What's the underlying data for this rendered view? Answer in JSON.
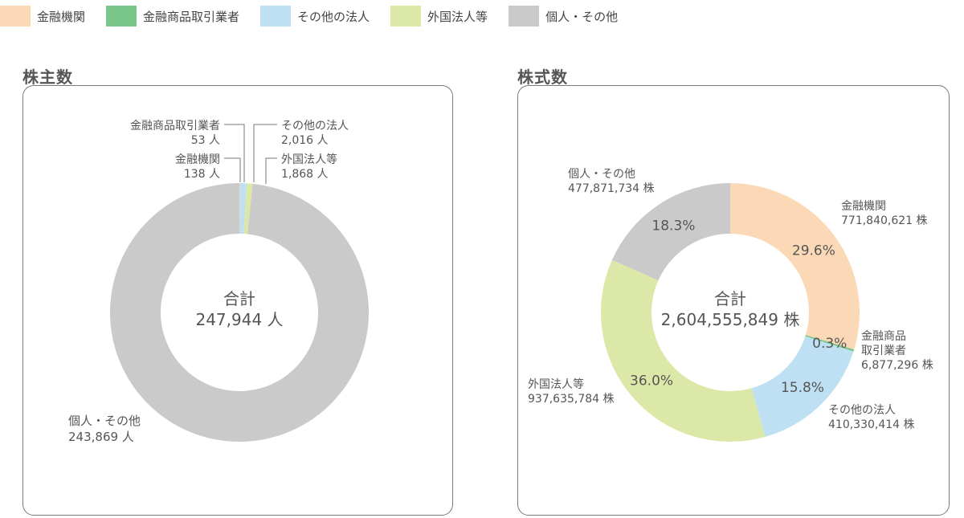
{
  "legend": [
    {
      "label": "金融機関",
      "color": "#fcd9b6"
    },
    {
      "label": "金融商品取引業者",
      "color": "#7bc68b"
    },
    {
      "label": "その他の法人",
      "color": "#bfe0f2"
    },
    {
      "label": "外国法人等",
      "color": "#dce8a7"
    },
    {
      "label": "個人・その他",
      "color": "#c9cac9"
    }
  ],
  "chart_data": [
    {
      "type": "pie",
      "title": "株主数",
      "center_label": "合計",
      "center_value": "247,944 人",
      "unit": "人",
      "categories": [
        "金融機関",
        "金融商品取引業者",
        "その他の法人",
        "外国法人等",
        "個人・その他"
      ],
      "values": [
        138,
        53,
        2016,
        1868,
        243869
      ],
      "value_labels": [
        "138 人",
        "53 人",
        "2,016 人",
        "1,868 人",
        "243,869 人"
      ],
      "slice_labels": [
        "金融機関",
        "金融商品取引業者",
        "その他の法人",
        "外国法人等",
        "個人・その他"
      ],
      "percent_labels": [],
      "colors": [
        "#fcd9b6",
        "#7bc68b",
        "#bfe0f2",
        "#dce8a7",
        "#c9cac9"
      ]
    },
    {
      "type": "pie",
      "title": "株式数",
      "center_label": "合計",
      "center_value": "2,604,555,849 株",
      "unit": "株",
      "categories": [
        "金融機関",
        "金融商品取引業者",
        "その他の法人",
        "外国法人等",
        "個人・その他"
      ],
      "values": [
        771840621,
        6877296,
        410330414,
        937635784,
        477871734
      ],
      "value_labels": [
        "771,840,621 株",
        "6,877,296 株",
        "410,330,414 株",
        "937,635,784 株",
        "477,871,734 株"
      ],
      "slice_labels": [
        "金融機関",
        "金融商品\n取引業者",
        "その他の法人",
        "外国法人等",
        "個人・その他"
      ],
      "percent_labels": [
        "29.6%",
        "0.3%",
        "15.8%",
        "36.0%",
        "18.3%"
      ],
      "colors": [
        "#fcd9b6",
        "#7bc68b",
        "#bfe0f2",
        "#dce8a7",
        "#c9cac9"
      ]
    }
  ]
}
